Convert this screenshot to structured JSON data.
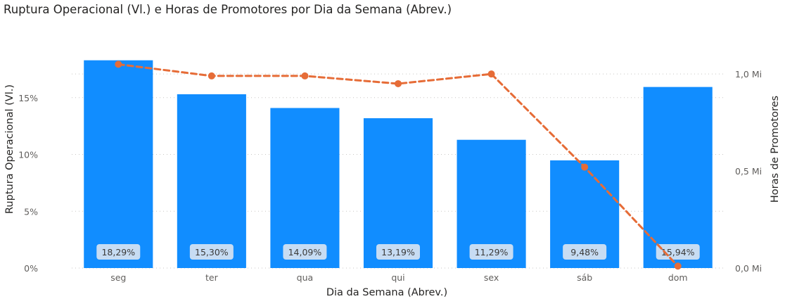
{
  "chart_data": {
    "type": "bar",
    "title": "Ruptura Operacional (Vl.) e Horas de Promotores por Dia da Semana (Abrev.)",
    "xlabel": "Dia da Semana (Abrev.)",
    "ylabel": "Ruptura Operacional (Vl.)",
    "y2label": "Horas de Promotores",
    "categories": [
      "seg",
      "ter",
      "qua",
      "qui",
      "sex",
      "sáb",
      "dom"
    ],
    "bar_series": {
      "name": "Ruptura Operacional (Vl.)",
      "values": [
        18.29,
        15.3,
        14.09,
        13.19,
        11.29,
        9.48,
        15.94
      ],
      "labels": [
        "18,29%",
        "15,30%",
        "14,09%",
        "13,19%",
        "11,29%",
        "9,48%",
        "15,94%"
      ],
      "color": "#118dff"
    },
    "line_series": {
      "name": "Horas de Promotores",
      "values": [
        1.05,
        0.99,
        0.99,
        0.95,
        1.0,
        0.52,
        0.01
      ],
      "color": "#e66c37",
      "style": "dashed"
    },
    "yaxis_left": {
      "ticks": [
        0,
        5,
        10,
        15
      ],
      "labels": [
        "0%",
        "5%",
        "10%",
        "15%"
      ],
      "max": 20.5
    },
    "yaxis_right": {
      "ticks": [
        0,
        0.5,
        1.0
      ],
      "labels": [
        "0,0 Mi",
        "0,5 Mi",
        "1,0 Mi"
      ],
      "max": 1.2
    },
    "grid": true,
    "legend": "none"
  }
}
